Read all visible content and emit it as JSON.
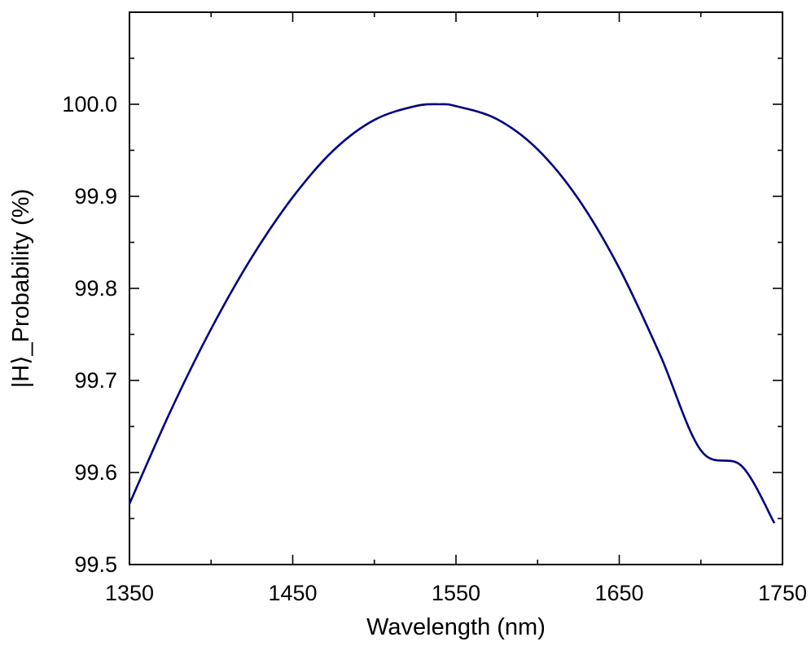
{
  "chart_data": {
    "type": "line",
    "title": "",
    "xlabel": "Wavelength (nm)",
    "ylabel": "|H⟩_Probability (%)",
    "xlim": [
      1350,
      1750
    ],
    "ylim": [
      99.5,
      100.05
    ],
    "x_ticks": [
      1350,
      1450,
      1550,
      1650,
      1750
    ],
    "x_tick_labels": [
      "1350",
      "1450",
      "1550",
      "1650",
      "1750"
    ],
    "y_ticks": [
      99.5,
      99.6,
      99.7,
      99.8,
      99.9,
      100.0
    ],
    "y_tick_labels": [
      "99.5",
      "99.6",
      "99.7",
      "99.8",
      "99.9",
      "100.0"
    ],
    "grid": false,
    "line_color": "#000080",
    "series": [
      {
        "x": [
          1350,
          1375,
          1400,
          1425,
          1450,
          1475,
          1500,
          1525,
          1540,
          1550,
          1575,
          1600,
          1625,
          1650,
          1675,
          1700,
          1725,
          1745
        ],
        "values": [
          99.566,
          99.666,
          99.756,
          99.834,
          99.899,
          99.95,
          99.983,
          99.998,
          100.0,
          99.998,
          99.984,
          99.951,
          99.897,
          99.822,
          99.728,
          99.624,
          99.607,
          99.545
        ]
      }
    ]
  }
}
